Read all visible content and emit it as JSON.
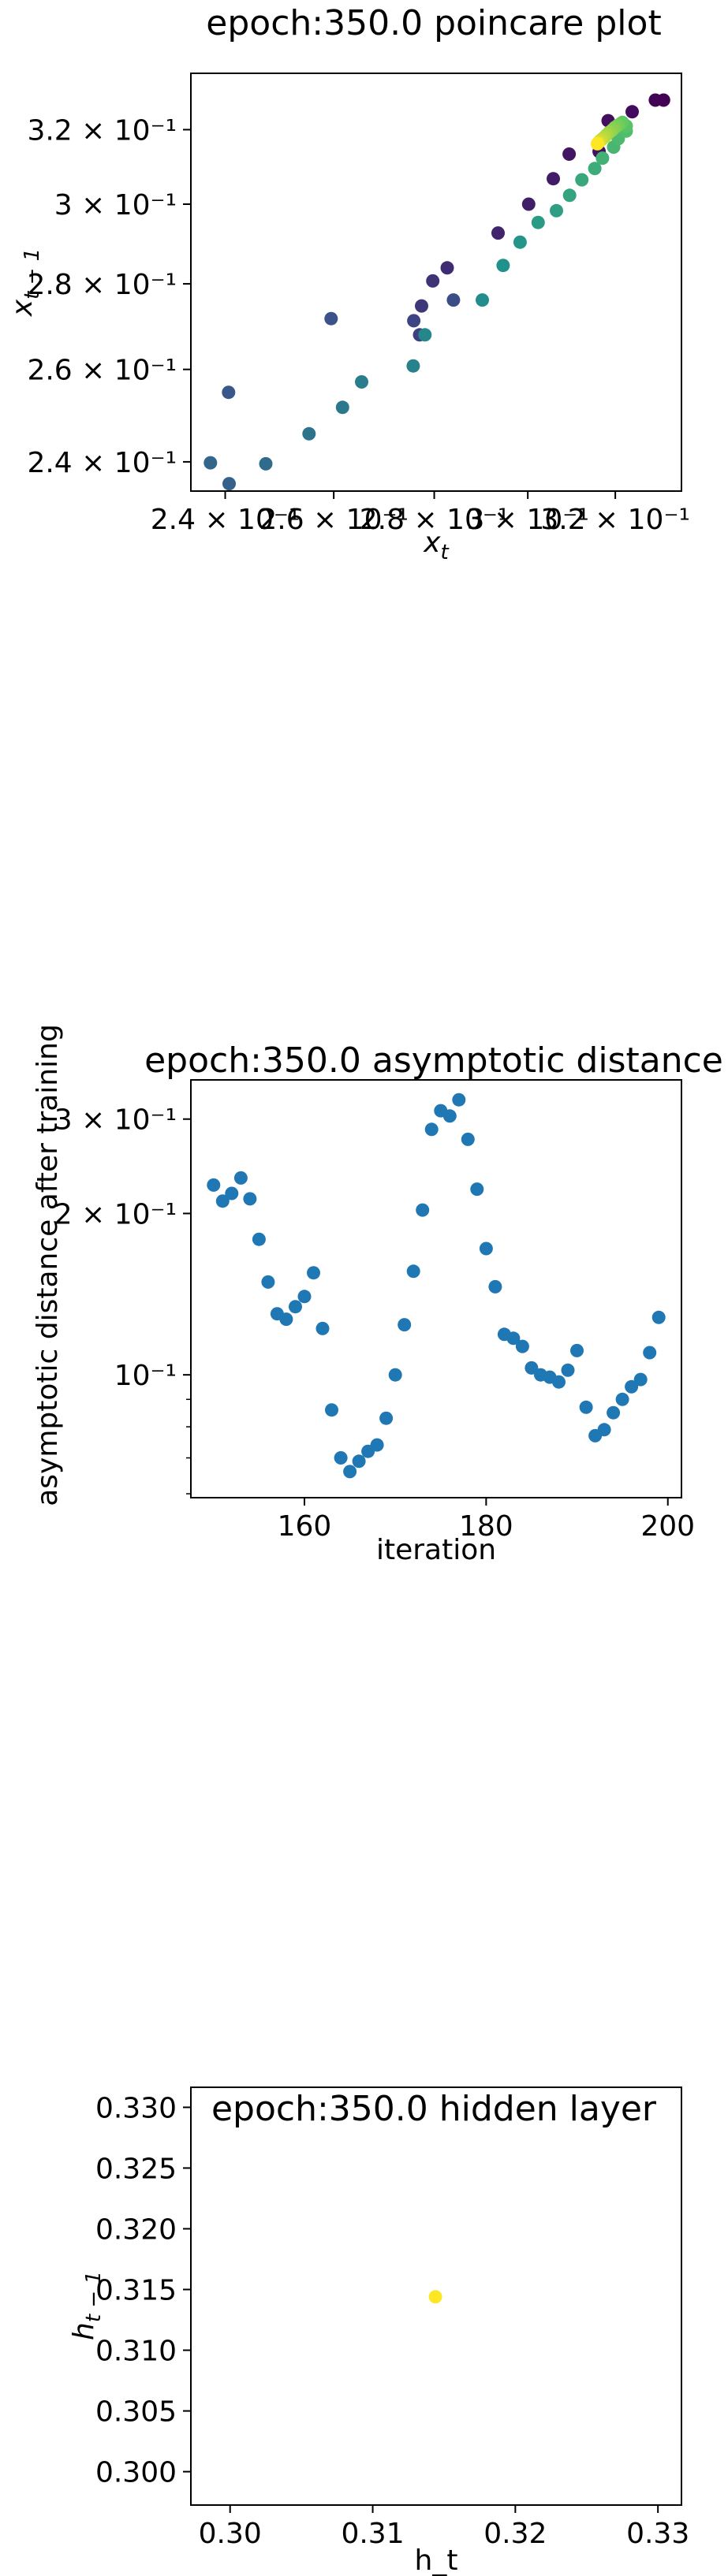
{
  "chart_data": [
    {
      "type": "scatter",
      "title": "epoch:350.0 poincare plot",
      "xlabel": "x_t",
      "ylabel": "x_{t-1}",
      "xscale": "log",
      "yscale": "log",
      "xlim": [
        0.234,
        0.336
      ],
      "ylim": [
        0.234,
        0.336
      ],
      "xticks": [
        {
          "value": 0.24,
          "label": "2.4 × 10⁻¹"
        },
        {
          "value": 0.26,
          "label": "2.6 × 10⁻¹"
        },
        {
          "value": 0.28,
          "label": "2.8 × 10⁻¹"
        },
        {
          "value": 0.3,
          "label": "3 × 10⁻¹"
        },
        {
          "value": 0.32,
          "label": "3.2 × 10⁻¹"
        }
      ],
      "yticks": [
        {
          "value": 0.24,
          "label": "2.4 × 10⁻¹"
        },
        {
          "value": 0.26,
          "label": "2.6 × 10⁻¹"
        },
        {
          "value": 0.28,
          "label": "2.8 × 10⁻¹"
        },
        {
          "value": 0.3,
          "label": "3 × 10⁻¹"
        },
        {
          "value": 0.32,
          "label": "3.2 × 10⁻¹"
        }
      ],
      "colormap": "viridis",
      "colormap_stops": [
        "#440154",
        "#3b528b",
        "#21918c",
        "#5ec962",
        "#fde725"
      ],
      "grid": false,
      "points": [
        {
          "x": 0.3316,
          "y": 0.3283,
          "c": 0.0
        },
        {
          "x": 0.3296,
          "y": 0.3283,
          "c": 0.01
        },
        {
          "x": 0.324,
          "y": 0.325,
          "c": 0.03
        },
        {
          "x": 0.3183,
          "y": 0.3225,
          "c": 0.04
        },
        {
          "x": 0.3162,
          "y": 0.314,
          "c": 0.05
        },
        {
          "x": 0.3093,
          "y": 0.3133,
          "c": 0.06
        },
        {
          "x": 0.3057,
          "y": 0.3067,
          "c": 0.08
        },
        {
          "x": 0.3002,
          "y": 0.3,
          "c": 0.09
        },
        {
          "x": 0.2935,
          "y": 0.2926,
          "c": 0.11
        },
        {
          "x": 0.2827,
          "y": 0.2839,
          "c": 0.13
        },
        {
          "x": 0.2797,
          "y": 0.2807,
          "c": 0.15
        },
        {
          "x": 0.2774,
          "y": 0.2747,
          "c": 0.17
        },
        {
          "x": 0.277,
          "y": 0.2679,
          "c": 0.19
        },
        {
          "x": 0.2758,
          "y": 0.2712,
          "c": 0.21
        },
        {
          "x": 0.284,
          "y": 0.2761,
          "c": 0.23
        },
        {
          "x": 0.2595,
          "y": 0.2717,
          "c": 0.25
        },
        {
          "x": 0.2406,
          "y": 0.2549,
          "c": 0.27
        },
        {
          "x": 0.2407,
          "y": 0.2355,
          "c": 0.31
        },
        {
          "x": 0.2374,
          "y": 0.2398,
          "c": 0.33
        },
        {
          "x": 0.2473,
          "y": 0.2396,
          "c": 0.35
        },
        {
          "x": 0.2553,
          "y": 0.2459,
          "c": 0.38
        },
        {
          "x": 0.2617,
          "y": 0.2516,
          "c": 0.4
        },
        {
          "x": 0.2654,
          "y": 0.2572,
          "c": 0.42
        },
        {
          "x": 0.2757,
          "y": 0.2608,
          "c": 0.44
        },
        {
          "x": 0.2781,
          "y": 0.2679,
          "c": 0.46
        },
        {
          "x": 0.2901,
          "y": 0.2761,
          "c": 0.48
        },
        {
          "x": 0.2946,
          "y": 0.2845,
          "c": 0.5
        },
        {
          "x": 0.2983,
          "y": 0.2903,
          "c": 0.52
        },
        {
          "x": 0.3023,
          "y": 0.2953,
          "c": 0.54
        },
        {
          "x": 0.3064,
          "y": 0.2983,
          "c": 0.56
        },
        {
          "x": 0.3094,
          "y": 0.3023,
          "c": 0.58
        },
        {
          "x": 0.3122,
          "y": 0.3064,
          "c": 0.6
        },
        {
          "x": 0.3152,
          "y": 0.3094,
          "c": 0.62
        },
        {
          "x": 0.317,
          "y": 0.3122,
          "c": 0.64
        },
        {
          "x": 0.3196,
          "y": 0.3152,
          "c": 0.66
        },
        {
          "x": 0.3207,
          "y": 0.3175,
          "c": 0.68
        },
        {
          "x": 0.3226,
          "y": 0.3196,
          "c": 0.7
        },
        {
          "x": 0.3226,
          "y": 0.321,
          "c": 0.72
        },
        {
          "x": 0.3217,
          "y": 0.322,
          "c": 0.74
        },
        {
          "x": 0.3213,
          "y": 0.3217,
          "c": 0.76
        },
        {
          "x": 0.3206,
          "y": 0.3212,
          "c": 0.78
        },
        {
          "x": 0.3199,
          "y": 0.3206,
          "c": 0.8
        },
        {
          "x": 0.3193,
          "y": 0.3199,
          "c": 0.82
        },
        {
          "x": 0.3186,
          "y": 0.3193,
          "c": 0.84
        },
        {
          "x": 0.318,
          "y": 0.3186,
          "c": 0.86
        },
        {
          "x": 0.3175,
          "y": 0.318,
          "c": 0.88
        },
        {
          "x": 0.317,
          "y": 0.3175,
          "c": 0.9
        },
        {
          "x": 0.3165,
          "y": 0.317,
          "c": 0.92
        },
        {
          "x": 0.3161,
          "y": 0.3165,
          "c": 0.95
        },
        {
          "x": 0.3158,
          "y": 0.3161,
          "c": 1.0
        }
      ]
    },
    {
      "type": "scatter",
      "title": "epoch:350.0 asymptotic distance",
      "xlabel": "iteration",
      "ylabel": "asymptotic distance after training",
      "xscale": "linear",
      "yscale": "log",
      "xlim": [
        147.5,
        201.5
      ],
      "ylim": [
        0.059,
        0.355
      ],
      "xticks": [
        {
          "value": 160,
          "label": "160"
        },
        {
          "value": 180,
          "label": "180"
        },
        {
          "value": 200,
          "label": "200"
        }
      ],
      "yticks": [
        {
          "value": 0.1,
          "label": "10⁻¹"
        },
        {
          "value": 0.2,
          "label": "2 × 10⁻¹"
        },
        {
          "value": 0.3,
          "label": "3 × 10⁻¹"
        }
      ],
      "yminor": [
        0.06,
        0.07,
        0.08,
        0.09
      ],
      "color": "#1f77b4",
      "grid": false,
      "x": [
        150,
        151,
        152,
        153,
        154,
        155,
        156,
        157,
        158,
        159,
        160,
        161,
        162,
        163,
        164,
        165,
        166,
        167,
        168,
        169,
        170,
        171,
        172,
        173,
        174,
        175,
        176,
        177,
        178,
        179,
        180,
        181,
        182,
        183,
        184,
        185,
        186,
        187,
        188,
        189,
        190,
        191,
        192,
        193,
        194,
        195,
        196,
        197,
        198,
        199
      ],
      "y": [
        0.226,
        0.211,
        0.218,
        0.233,
        0.213,
        0.179,
        0.149,
        0.13,
        0.127,
        0.134,
        0.14,
        0.155,
        0.122,
        0.086,
        0.07,
        0.066,
        0.069,
        0.072,
        0.074,
        0.083,
        0.1,
        0.124,
        0.156,
        0.203,
        0.287,
        0.311,
        0.304,
        0.326,
        0.275,
        0.222,
        0.172,
        0.146,
        0.119,
        0.117,
        0.113,
        0.103,
        0.1,
        0.099,
        0.097,
        0.102,
        0.111,
        0.087,
        0.077,
        0.079,
        0.085,
        0.09,
        0.095,
        0.098,
        0.11,
        0.128
      ]
    },
    {
      "type": "scatter",
      "title": "epoch:350.0 hidden layer",
      "xlabel": "h_t",
      "ylabel": "h_{t-1}",
      "xscale": "linear",
      "yscale": "linear",
      "xlim": [
        0.29725,
        0.33165
      ],
      "ylim": [
        0.29725,
        0.33165
      ],
      "xticks": [
        {
          "value": 0.3,
          "label": "0.30"
        },
        {
          "value": 0.31,
          "label": "0.31"
        },
        {
          "value": 0.32,
          "label": "0.32"
        },
        {
          "value": 0.33,
          "label": "0.33"
        }
      ],
      "yticks": [
        {
          "value": 0.3,
          "label": "0.300"
        },
        {
          "value": 0.305,
          "label": "0.305"
        },
        {
          "value": 0.31,
          "label": "0.310"
        },
        {
          "value": 0.315,
          "label": "0.315"
        },
        {
          "value": 0.32,
          "label": "0.320"
        },
        {
          "value": 0.325,
          "label": "0.325"
        },
        {
          "value": 0.33,
          "label": "0.330"
        }
      ],
      "color": "#fde725",
      "grid": false,
      "points": [
        {
          "x": 0.3144,
          "y": 0.3144
        }
      ]
    }
  ]
}
